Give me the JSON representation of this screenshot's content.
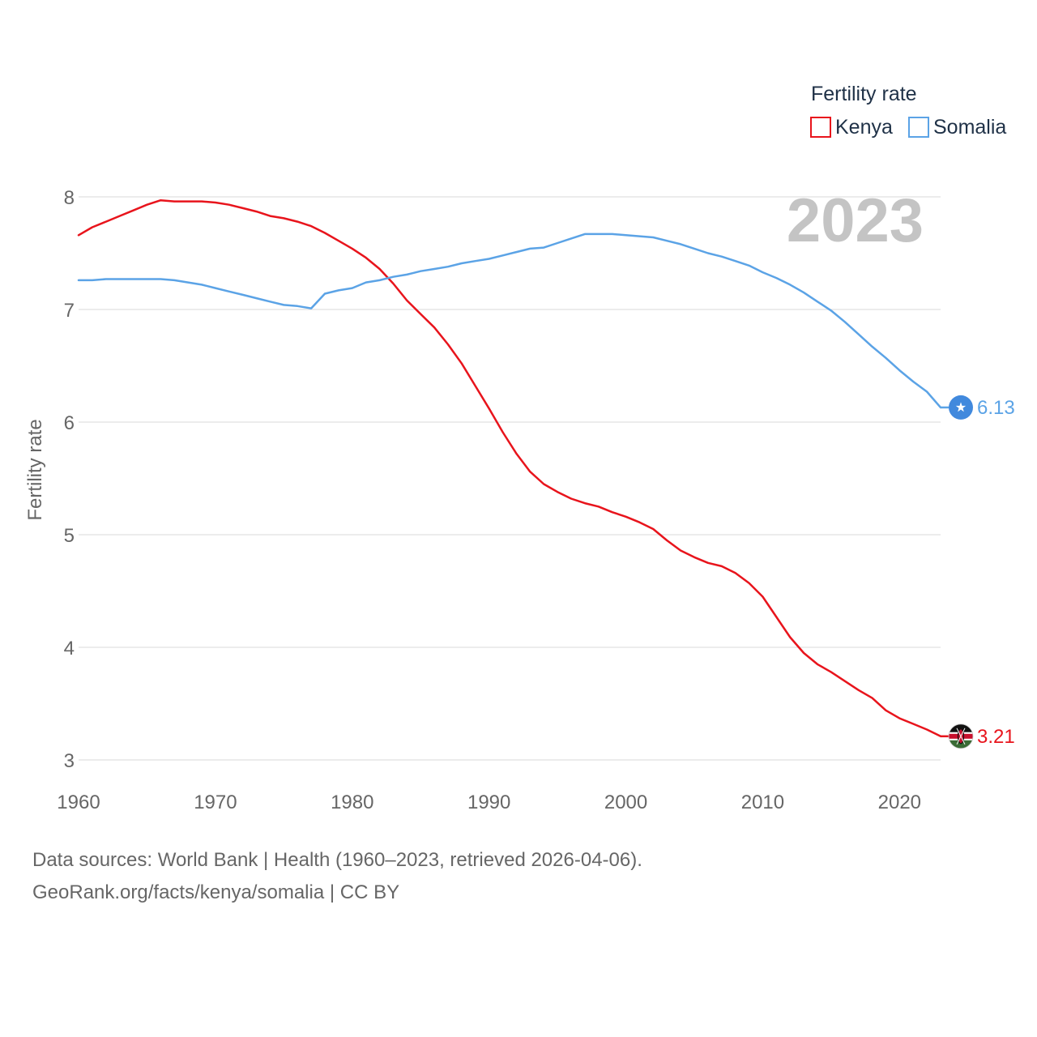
{
  "chart_data": {
    "type": "line",
    "year_label": "2023",
    "ylabel": "Fertility rate",
    "xlabel": "",
    "xlim": [
      1960,
      2023
    ],
    "ylim": [
      3,
      8
    ],
    "x_ticks": [
      "1960",
      "1970",
      "1980",
      "1990",
      "2000",
      "2010",
      "2020"
    ],
    "y_ticks": [
      "3",
      "4",
      "5",
      "6",
      "7",
      "8"
    ],
    "grid": true,
    "legend": {
      "title": "Fertility rate",
      "position": "top-right",
      "entries": [
        "Kenya",
        "Somalia"
      ]
    },
    "series": [
      {
        "name": "Kenya",
        "color": "#e8141c",
        "end_label": "3.21",
        "flag_icon": "kenya-flag-icon",
        "x": [
          1960,
          1961,
          1962,
          1963,
          1964,
          1965,
          1966,
          1967,
          1968,
          1969,
          1970,
          1971,
          1972,
          1973,
          1974,
          1975,
          1976,
          1977,
          1978,
          1979,
          1980,
          1981,
          1982,
          1983,
          1984,
          1985,
          1986,
          1987,
          1988,
          1989,
          1990,
          1991,
          1992,
          1993,
          1994,
          1995,
          1996,
          1997,
          1998,
          1999,
          2000,
          2001,
          2002,
          2003,
          2004,
          2005,
          2006,
          2007,
          2008,
          2009,
          2010,
          2011,
          2012,
          2013,
          2014,
          2015,
          2016,
          2017,
          2018,
          2019,
          2020,
          2021,
          2022,
          2023
        ],
        "values": [
          7.66,
          7.73,
          7.78,
          7.83,
          7.88,
          7.93,
          7.97,
          7.96,
          7.96,
          7.96,
          7.95,
          7.93,
          7.9,
          7.87,
          7.83,
          7.81,
          7.78,
          7.74,
          7.68,
          7.61,
          7.54,
          7.46,
          7.36,
          7.23,
          7.08,
          6.96,
          6.84,
          6.69,
          6.52,
          6.32,
          6.12,
          5.91,
          5.72,
          5.56,
          5.45,
          5.38,
          5.32,
          5.28,
          5.25,
          5.2,
          5.16,
          5.11,
          5.05,
          4.95,
          4.86,
          4.8,
          4.75,
          4.72,
          4.66,
          4.57,
          4.45,
          4.27,
          4.09,
          3.95,
          3.85,
          3.78,
          3.7,
          3.62,
          3.55,
          3.44,
          3.37,
          3.32,
          3.27,
          3.21
        ]
      },
      {
        "name": "Somalia",
        "color": "#5ba3e6",
        "end_label": "6.13",
        "flag_icon": "somalia-flag-icon",
        "x": [
          1960,
          1961,
          1962,
          1963,
          1964,
          1965,
          1966,
          1967,
          1968,
          1969,
          1970,
          1971,
          1972,
          1973,
          1974,
          1975,
          1976,
          1977,
          1978,
          1979,
          1980,
          1981,
          1982,
          1983,
          1984,
          1985,
          1986,
          1987,
          1988,
          1989,
          1990,
          1991,
          1992,
          1993,
          1994,
          1995,
          1996,
          1997,
          1998,
          1999,
          2000,
          2001,
          2002,
          2003,
          2004,
          2005,
          2006,
          2007,
          2008,
          2009,
          2010,
          2011,
          2012,
          2013,
          2014,
          2015,
          2016,
          2017,
          2018,
          2019,
          2020,
          2021,
          2022,
          2023
        ],
        "values": [
          7.26,
          7.26,
          7.27,
          7.27,
          7.27,
          7.27,
          7.27,
          7.26,
          7.24,
          7.22,
          7.19,
          7.16,
          7.13,
          7.1,
          7.07,
          7.04,
          7.03,
          7.01,
          7.14,
          7.17,
          7.19,
          7.24,
          7.26,
          7.29,
          7.31,
          7.34,
          7.36,
          7.38,
          7.41,
          7.43,
          7.45,
          7.48,
          7.51,
          7.54,
          7.55,
          7.59,
          7.63,
          7.67,
          7.67,
          7.67,
          7.66,
          7.65,
          7.64,
          7.61,
          7.58,
          7.54,
          7.5,
          7.47,
          7.43,
          7.39,
          7.33,
          7.28,
          7.22,
          7.15,
          7.07,
          6.99,
          6.89,
          6.78,
          6.67,
          6.57,
          6.46,
          6.36,
          6.27,
          6.13
        ]
      }
    ]
  },
  "footer": {
    "source_line": "Data sources: World Bank | Health (1960–2023, retrieved 2026-04-06).",
    "credit_line": "GeoRank.org/facts/kenya/somalia | CC BY"
  }
}
